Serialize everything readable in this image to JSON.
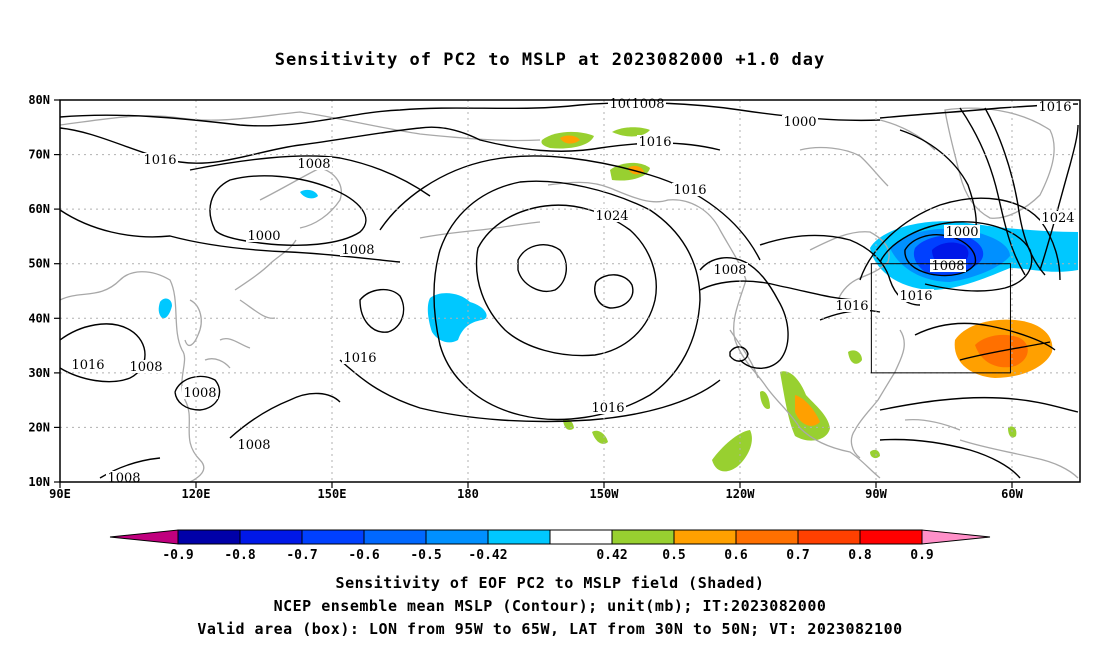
{
  "title": "Sensitivity of PC2 to MSLP at 2023082000 +1.0 day",
  "lat_labels": [
    "80N",
    "70N",
    "60N",
    "50N",
    "40N",
    "30N",
    "20N",
    "10N"
  ],
  "lon_labels": [
    "90E",
    "120E",
    "150E",
    "180",
    "150W",
    "120W",
    "90W",
    "60W"
  ],
  "contour_labels": [
    {
      "text": "1008"
    },
    {
      "text": "1016"
    },
    {
      "text": "1000"
    },
    {
      "text": "1016"
    },
    {
      "text": "1008"
    },
    {
      "text": "1016"
    },
    {
      "text": "1016"
    },
    {
      "text": "1024"
    },
    {
      "text": "1000"
    },
    {
      "text": "1008"
    },
    {
      "text": "1024"
    },
    {
      "text": "1008"
    },
    {
      "text": "1016"
    },
    {
      "text": "1016"
    },
    {
      "text": "1000"
    },
    {
      "text": "1008"
    },
    {
      "text": "1016"
    },
    {
      "text": "1016"
    },
    {
      "text": "1016"
    },
    {
      "text": "1008"
    },
    {
      "text": "1008"
    },
    {
      "text": "1008"
    },
    {
      "text": "1008"
    },
    {
      "text": "1008"
    }
  ],
  "colorbar": {
    "labels": [
      "-0.9",
      "-0.8",
      "-0.7",
      "-0.6",
      "-0.5",
      "-0.42",
      "0.42",
      "0.5",
      "0.6",
      "0.7",
      "0.8",
      "0.9"
    ],
    "colors": [
      "#0000a8",
      "#0018e8",
      "#0040ff",
      "#0068ff",
      "#0090ff",
      "#00c8ff",
      "#ffffff",
      "#98d030",
      "#ffa000",
      "#ff7000",
      "#ff4000",
      "#ff0000"
    ],
    "low_arrow_color": "#c0007e",
    "high_arrow_color": "#ff90c8"
  },
  "valid_box": {
    "lon_min": -95,
    "lon_max": -65,
    "lat_min": 30,
    "lat_max": 50
  },
  "captions": [
    "Sensitivity of EOF PC2 to MSLP field (Shaded)",
    "NCEP ensemble mean MSLP (Contour); unit(mb); IT:2023082000",
    "Valid area (box): LON from 95W to 65W, LAT from 30N to 50N; VT: 2023082100"
  ]
}
